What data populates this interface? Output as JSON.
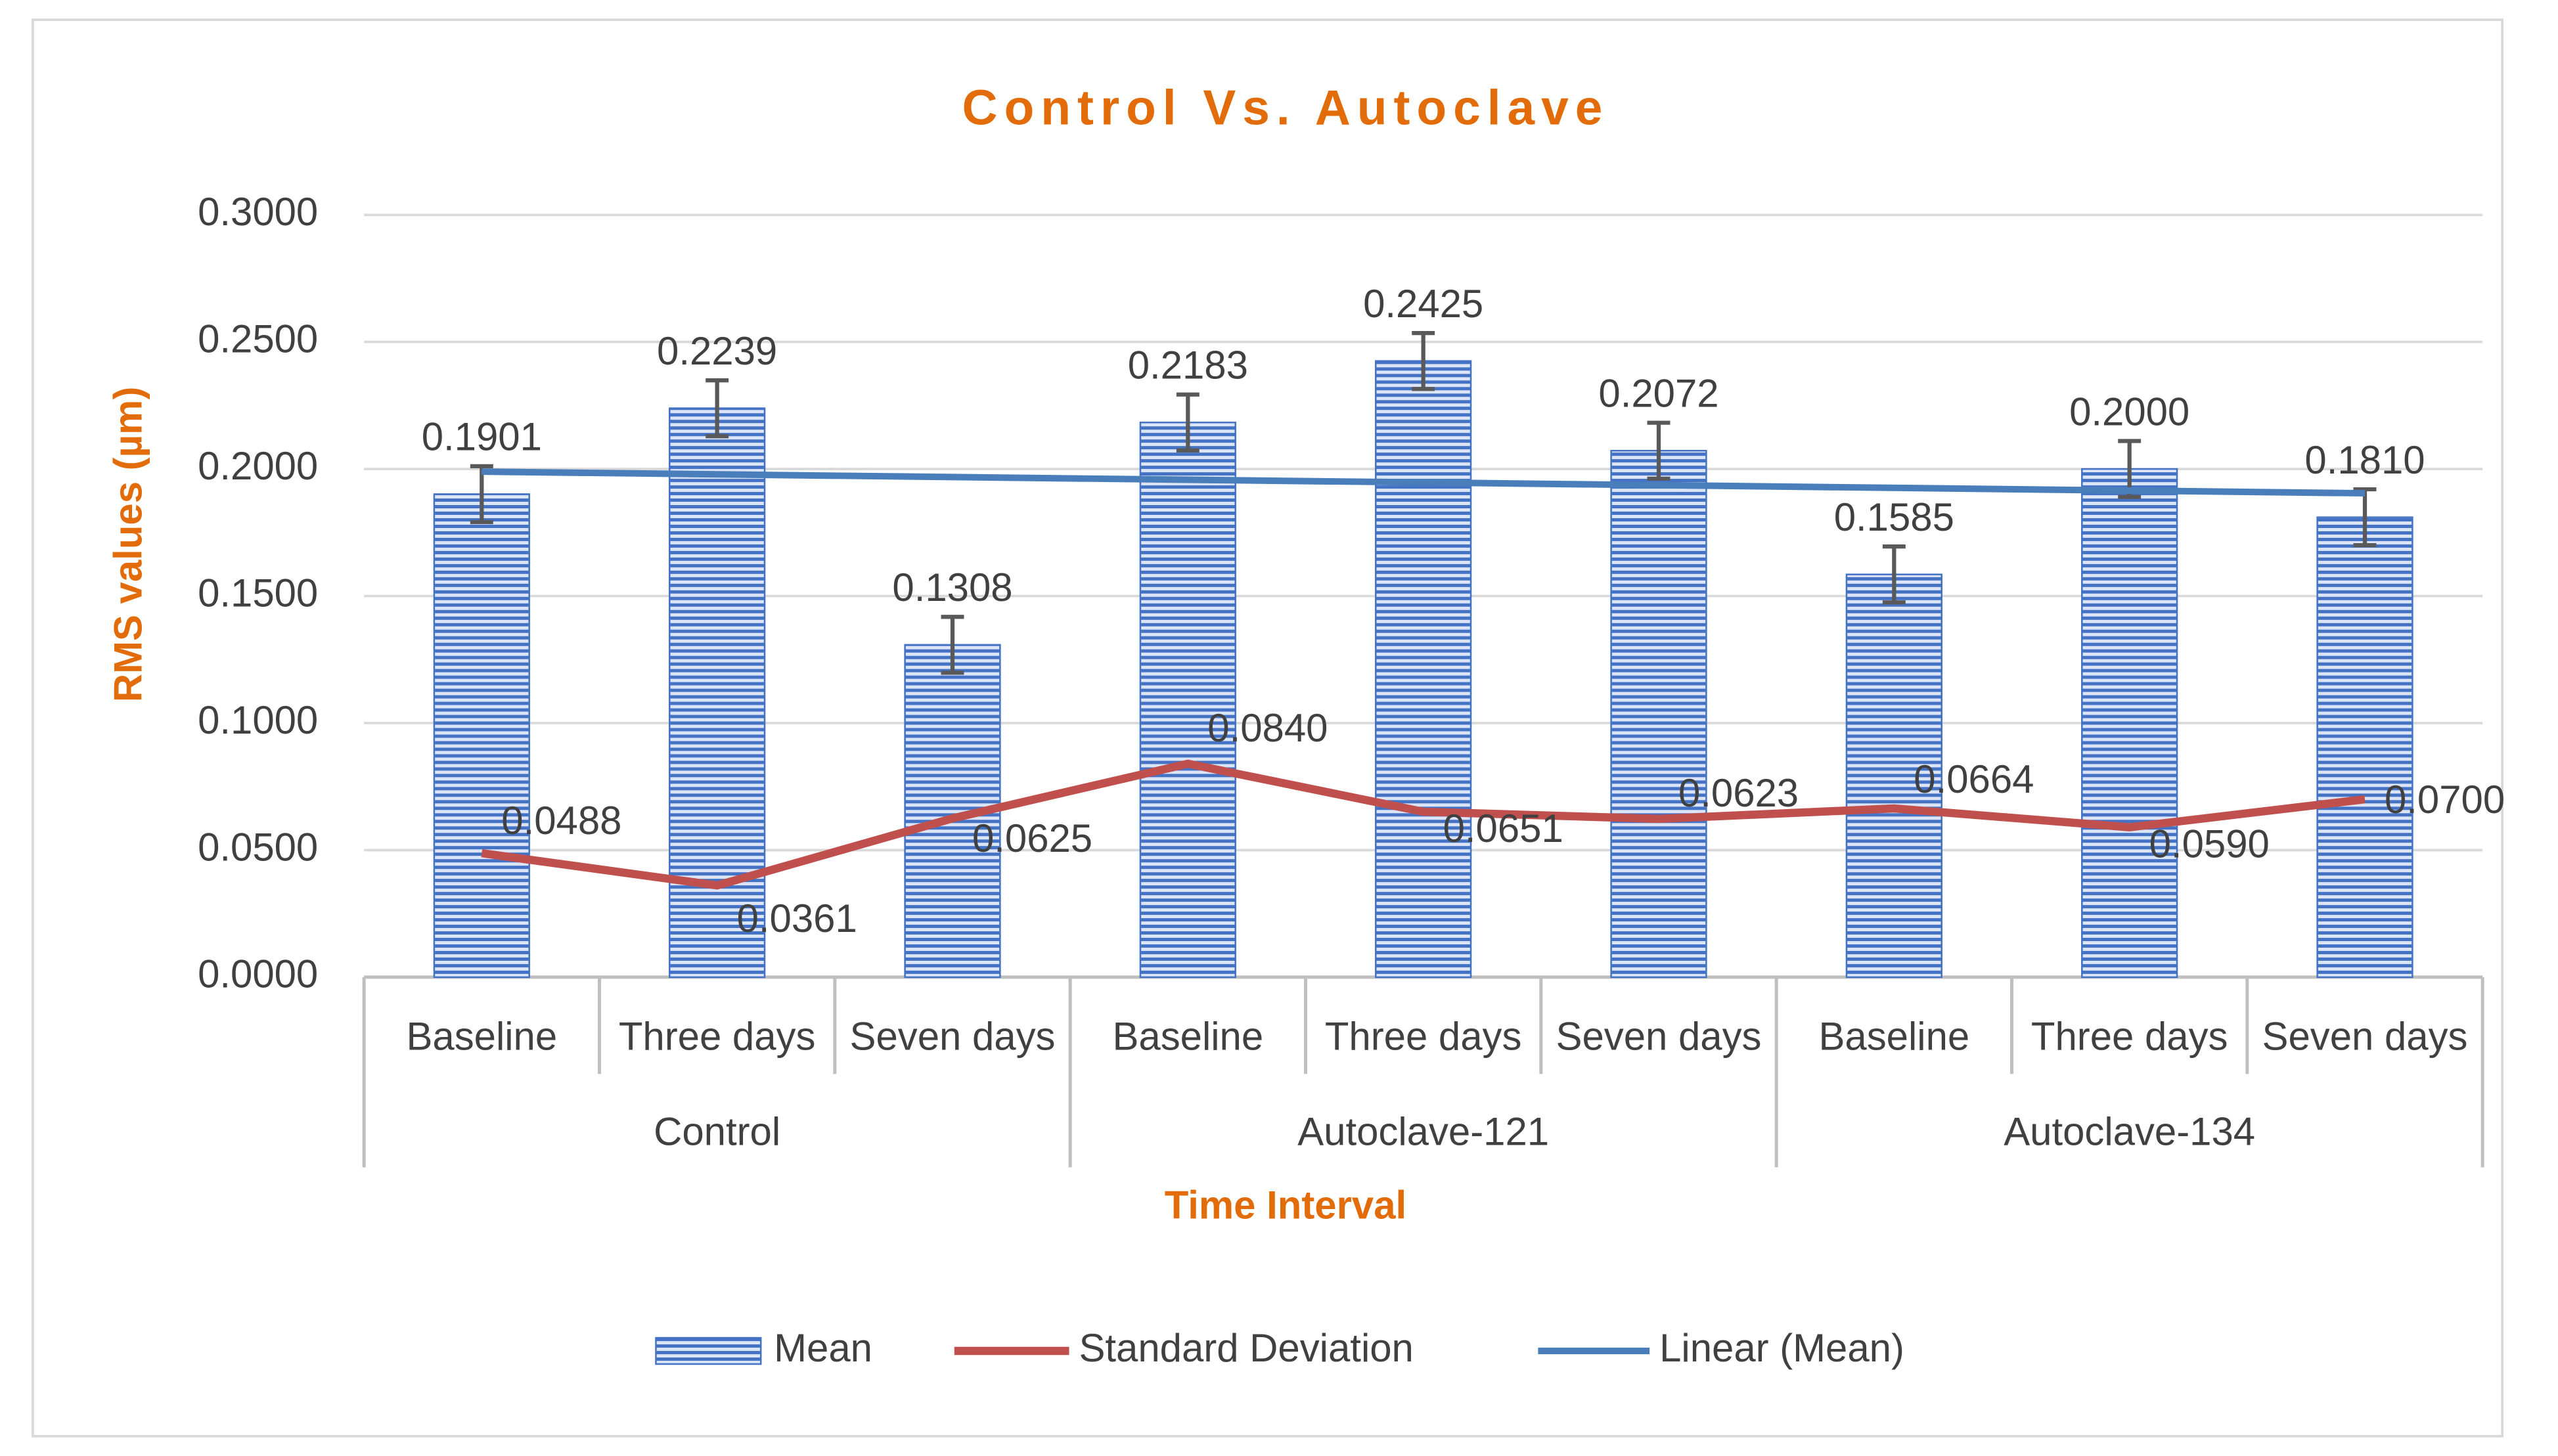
{
  "chart_data": {
    "type": "bar",
    "title": "Control Vs. Autoclave",
    "x_label": "Time Interval",
    "y_label": "RMS values (µm)",
    "groups": [
      {
        "name": "Control",
        "categories": [
          "Baseline",
          "Three days",
          "Seven days"
        ]
      },
      {
        "name": "Autoclave-121",
        "categories": [
          "Baseline",
          "Three days",
          "Seven days"
        ]
      },
      {
        "name": "Autoclave-134",
        "categories": [
          "Baseline",
          "Three days",
          "Seven days"
        ]
      }
    ],
    "series": [
      {
        "name": "Mean",
        "type": "bar",
        "color": "#4472c4",
        "values": [
          0.1901,
          0.2239,
          0.1308,
          0.2183,
          0.2425,
          0.2072,
          0.1585,
          0.2,
          0.181
        ],
        "value_labels": [
          "0.1901",
          "0.2239",
          "0.1308",
          "0.2183",
          "0.2425",
          "0.2072",
          "0.1585",
          "0.2000",
          "0.1810"
        ],
        "errors": [
          0.011,
          0.011,
          0.011,
          0.011,
          0.011,
          0.011,
          0.011,
          0.011,
          0.011
        ]
      },
      {
        "name": "Standard Deviation",
        "type": "line",
        "color": "#c0504d",
        "values": [
          0.0488,
          0.0361,
          0.0625,
          0.084,
          0.0651,
          0.0623,
          0.0664,
          0.059,
          0.07
        ],
        "value_labels": [
          "0.0488",
          "0.0361",
          "0.0625",
          "0.0840",
          "0.0651",
          "0.0623",
          "0.0664",
          "0.0590",
          "0.0700"
        ]
      }
    ],
    "trendline": {
      "name": "Linear (Mean)",
      "of": "Mean",
      "kind": "linear",
      "color": "#4a7ebb"
    },
    "ylim": [
      0,
      0.3
    ],
    "yticks": [
      {
        "value": 0,
        "label": "0.0000"
      },
      {
        "value": 0.05,
        "label": "0.0500"
      },
      {
        "value": 0.1,
        "label": "0.1000"
      },
      {
        "value": 0.15,
        "label": "0.1500"
      },
      {
        "value": 0.2,
        "label": "0.2000"
      },
      {
        "value": 0.25,
        "label": "0.2500"
      },
      {
        "value": 0.3,
        "label": "0.3000"
      }
    ],
    "grid": true,
    "legend": "bottom"
  }
}
